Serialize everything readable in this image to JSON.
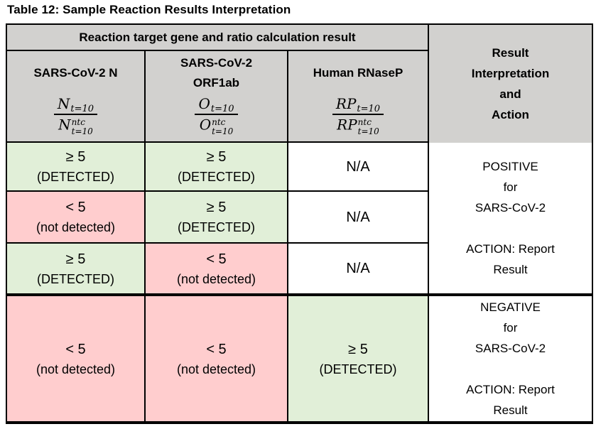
{
  "title": "Table 12: Sample Reaction Results Interpretation",
  "colors": {
    "header_bg": "#d2d1cf",
    "detected_bg": "#e1efd8",
    "not_detected_bg": "#ffcdce",
    "na_bg": "#ffffff",
    "border_color": "#000000"
  },
  "table": {
    "header": "Reaction target gene and ratio calculation result",
    "interp_header": {
      "lines": [
        "Result",
        "Interpretation",
        "and",
        "Action"
      ]
    },
    "columns": [
      {
        "name1": "SARS-CoV-2 N",
        "name2": "",
        "formula": {
          "num_base": "N",
          "num_sub": "t=10",
          "den_base": "N",
          "den_sup": "ntc",
          "den_sub": "t=10"
        }
      },
      {
        "name1": "SARS-CoV-2",
        "name2": "ORF1ab",
        "formula": {
          "num_base": "O",
          "num_sub": "t=10",
          "den_base": "O",
          "den_sup": "ntc",
          "den_sub": "t=10"
        }
      },
      {
        "name1": "Human RNaseP",
        "name2": "",
        "formula": {
          "num_base": "RP",
          "num_sub": "t=10",
          "den_base": "RP",
          "den_sup": "ntc",
          "den_sub": "t=10"
        }
      }
    ],
    "rows": [
      {
        "cells": [
          {
            "value": "≥ 5",
            "label": "(DETECTED)"
          },
          {
            "value": "≥ 5",
            "label": "(DETECTED)"
          },
          {
            "value": "N/A",
            "label": ""
          }
        ]
      },
      {
        "cells": [
          {
            "value": "< 5",
            "label": "(not detected)"
          },
          {
            "value": "≥ 5",
            "label": "(DETECTED)"
          },
          {
            "value": "N/A",
            "label": ""
          }
        ]
      },
      {
        "cells": [
          {
            "value": "≥ 5",
            "label": "(DETECTED)"
          },
          {
            "value": "< 5",
            "label": "(not detected)"
          },
          {
            "value": "N/A",
            "label": ""
          }
        ]
      },
      {
        "cells": [
          {
            "value": "< 5",
            "label": "(not detected)"
          },
          {
            "value": "< 5",
            "label": "(not detected)"
          },
          {
            "value": "≥ 5",
            "label": "(DETECTED)"
          }
        ]
      }
    ],
    "interpretations": [
      {
        "lines": [
          "POSITIVE",
          "for",
          "SARS-CoV-2",
          "",
          "ACTION: Report",
          "Result"
        ]
      },
      {
        "lines": [
          "NEGATIVE",
          "for",
          "SARS-CoV-2",
          "",
          "ACTION: Report",
          "Result"
        ]
      }
    ]
  }
}
